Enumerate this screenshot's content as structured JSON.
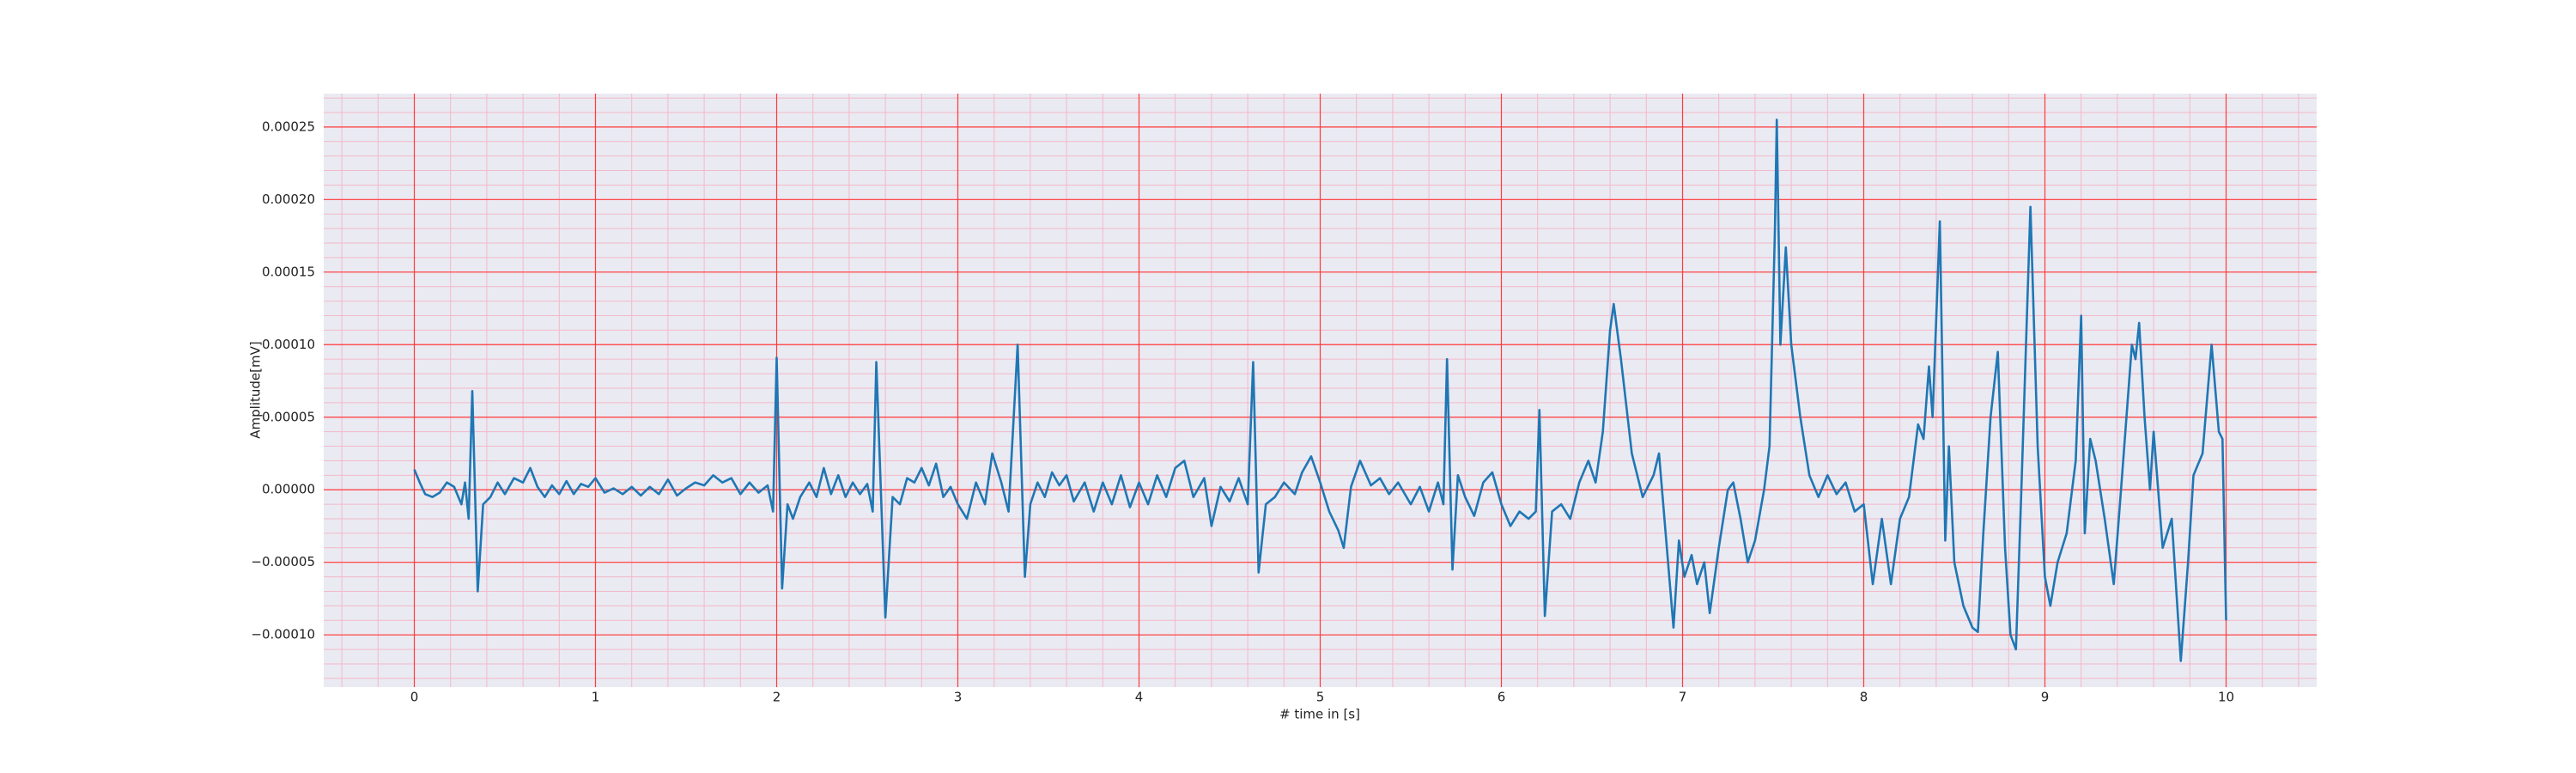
{
  "chart_data": {
    "type": "line",
    "xlabel": "# time in [s]",
    "ylabel": "Amplitude[mV]",
    "xlim": [
      -0.5,
      10.5
    ],
    "ylim": [
      -0.000136,
      0.000273
    ],
    "xticks": [
      0,
      1,
      2,
      3,
      4,
      5,
      6,
      7,
      8,
      9,
      10
    ],
    "yticks": [
      {
        "value": -0.0001,
        "label": "−0.00010"
      },
      {
        "value": -5e-05,
        "label": "−0.00005"
      },
      {
        "value": 0,
        "label": "0.00000"
      },
      {
        "value": 5e-05,
        "label": "0.00005"
      },
      {
        "value": 0.0001,
        "label": "0.00010"
      },
      {
        "value": 0.00015,
        "label": "0.00015"
      },
      {
        "value": 0.0002,
        "label": "0.00020"
      },
      {
        "value": 0.00025,
        "label": "0.00025"
      }
    ],
    "grid": true,
    "minor_grid": true,
    "x_minor_divisions": 5,
    "y_minor_divisions": 5,
    "background": "#eaeaf2",
    "grid_color": "#ff3b3b",
    "minor_grid_color": "#f4b8c8",
    "series": [
      {
        "color": "#1f77b4",
        "x": [
          0,
          0.03,
          0.06,
          0.1,
          0.14,
          0.18,
          0.22,
          0.26,
          0.28,
          0.3,
          0.32,
          0.35,
          0.38,
          0.42,
          0.46,
          0.5,
          0.55,
          0.6,
          0.64,
          0.68,
          0.72,
          0.76,
          0.8,
          0.84,
          0.88,
          0.92,
          0.96,
          1.0,
          1.05,
          1.1,
          1.15,
          1.2,
          1.25,
          1.3,
          1.35,
          1.4,
          1.45,
          1.5,
          1.55,
          1.6,
          1.65,
          1.7,
          1.75,
          1.8,
          1.85,
          1.9,
          1.95,
          1.98,
          2.0,
          2.03,
          2.06,
          2.09,
          2.13,
          2.18,
          2.22,
          2.26,
          2.3,
          2.34,
          2.38,
          2.42,
          2.46,
          2.5,
          2.53,
          2.55,
          2.6,
          2.64,
          2.68,
          2.72,
          2.76,
          2.8,
          2.84,
          2.88,
          2.92,
          2.96,
          3.0,
          3.05,
          3.1,
          3.15,
          3.19,
          3.24,
          3.28,
          3.33,
          3.37,
          3.4,
          3.44,
          3.48,
          3.52,
          3.56,
          3.6,
          3.64,
          3.7,
          3.75,
          3.8,
          3.85,
          3.9,
          3.95,
          4.0,
          4.05,
          4.1,
          4.15,
          4.2,
          4.25,
          4.3,
          4.36,
          4.4,
          4.45,
          4.5,
          4.55,
          4.6,
          4.63,
          4.66,
          4.7,
          4.75,
          4.8,
          4.86,
          4.9,
          4.95,
          5.0,
          5.05,
          5.1,
          5.13,
          5.17,
          5.22,
          5.28,
          5.33,
          5.38,
          5.43,
          5.5,
          5.55,
          5.6,
          5.65,
          5.68,
          5.7,
          5.73,
          5.76,
          5.8,
          5.85,
          5.9,
          5.95,
          6.0,
          6.05,
          6.1,
          6.15,
          6.19,
          6.21,
          6.24,
          6.28,
          6.33,
          6.38,
          6.43,
          6.48,
          6.52,
          6.56,
          6.6,
          6.62,
          6.66,
          6.72,
          6.78,
          6.84,
          6.87,
          6.9,
          6.95,
          6.98,
          7.01,
          7.05,
          7.08,
          7.12,
          7.15,
          7.2,
          7.25,
          7.28,
          7.32,
          7.36,
          7.4,
          7.45,
          7.48,
          7.51,
          7.52,
          7.54,
          7.57,
          7.6,
          7.65,
          7.7,
          7.75,
          7.8,
          7.85,
          7.9,
          7.95,
          8.0,
          8.05,
          8.1,
          8.15,
          8.2,
          8.25,
          8.3,
          8.33,
          8.36,
          8.38,
          8.42,
          8.45,
          8.47,
          8.5,
          8.55,
          8.6,
          8.63,
          8.66,
          8.7,
          8.74,
          8.78,
          8.81,
          8.84,
          8.87,
          8.92,
          8.96,
          9.0,
          9.03,
          9.07,
          9.12,
          9.17,
          9.2,
          9.22,
          9.25,
          9.28,
          9.33,
          9.38,
          9.42,
          9.45,
          9.48,
          9.5,
          9.52,
          9.55,
          9.58,
          9.6,
          9.65,
          9.7,
          9.75,
          9.79,
          9.82,
          9.87,
          9.92,
          9.96,
          9.98,
          10.0
        ],
        "values": [
          1.4e-05,
          5e-06,
          -3e-06,
          -5e-06,
          -2e-06,
          5e-06,
          2e-06,
          -1e-05,
          5e-06,
          -2e-05,
          6.8e-05,
          -7e-05,
          -1e-05,
          -5e-06,
          5e-06,
          -3e-06,
          8e-06,
          5e-06,
          1.5e-05,
          2e-06,
          -5e-06,
          3e-06,
          -3e-06,
          6e-06,
          -3e-06,
          4e-06,
          2e-06,
          8e-06,
          -2e-06,
          1e-06,
          -3e-06,
          2e-06,
          -4e-06,
          2e-06,
          -3e-06,
          7e-06,
          -4e-06,
          1e-06,
          5e-06,
          3e-06,
          1e-05,
          5e-06,
          8e-06,
          -3e-06,
          5e-06,
          -2e-06,
          3e-06,
          -1.5e-05,
          9.1e-05,
          -6.8e-05,
          -1e-05,
          -2e-05,
          -5e-06,
          5e-06,
          -5e-06,
          1.5e-05,
          -3e-06,
          1e-05,
          -5e-06,
          5e-06,
          -3e-06,
          4e-06,
          -1.5e-05,
          8.8e-05,
          -8.8e-05,
          -5e-06,
          -1e-05,
          8e-06,
          5e-06,
          1.5e-05,
          3e-06,
          1.8e-05,
          -5e-06,
          2e-06,
          -1e-05,
          -2e-05,
          5e-06,
          -1e-05,
          2.5e-05,
          5e-06,
          -1.5e-05,
          0.0001,
          -6e-05,
          -1e-05,
          5e-06,
          -5e-06,
          1.2e-05,
          3e-06,
          1e-05,
          -8e-06,
          5e-06,
          -1.5e-05,
          5e-06,
          -1e-05,
          1e-05,
          -1.2e-05,
          5e-06,
          -1e-05,
          1e-05,
          -5e-06,
          1.5e-05,
          2e-05,
          -5e-06,
          8e-06,
          -2.5e-05,
          2e-06,
          -8e-06,
          8e-06,
          -1e-05,
          8.8e-05,
          -5.7e-05,
          -1e-05,
          -5e-06,
          5e-06,
          -3e-06,
          1.2e-05,
          2.3e-05,
          5e-06,
          -1.5e-05,
          -2.8e-05,
          -4e-05,
          2e-06,
          2e-05,
          3e-06,
          8e-06,
          -3e-06,
          5e-06,
          -1e-05,
          2e-06,
          -1.5e-05,
          5e-06,
          -1e-05,
          9e-05,
          -5.5e-05,
          1e-05,
          -5e-06,
          -1.8e-05,
          5e-06,
          1.2e-05,
          -1e-05,
          -2.5e-05,
          -1.5e-05,
          -2e-05,
          -1.5e-05,
          5.5e-05,
          -8.7e-05,
          -1.5e-05,
          -1e-05,
          -2e-05,
          5e-06,
          2e-05,
          5e-06,
          4e-05,
          0.00011,
          0.000128,
          9e-05,
          2.5e-05,
          -5e-06,
          1e-05,
          2.5e-05,
          -2e-05,
          -9.5e-05,
          -3.5e-05,
          -6e-05,
          -4.5e-05,
          -6.5e-05,
          -5e-05,
          -8.5e-05,
          -4e-05,
          0.0,
          5e-06,
          -2e-05,
          -5e-05,
          -3.5e-05,
          0.0,
          3e-05,
          0.00018,
          0.000255,
          0.0001,
          0.000167,
          0.0001,
          5e-05,
          1e-05,
          -5e-06,
          1e-05,
          -3e-06,
          5e-06,
          -1.5e-05,
          -1e-05,
          -6.5e-05,
          -2e-05,
          -6.5e-05,
          -2e-05,
          -5e-06,
          4.5e-05,
          3.5e-05,
          8.5e-05,
          5e-05,
          0.000185,
          -3.5e-05,
          3e-05,
          -5e-05,
          -8e-05,
          -9.5e-05,
          -9.8e-05,
          -3e-05,
          5e-05,
          9.5e-05,
          -4e-05,
          -0.0001,
          -0.00011,
          0.0,
          0.000195,
          3e-05,
          -6e-05,
          -8e-05,
          -5e-05,
          -3e-05,
          2e-05,
          0.00012,
          -3e-05,
          3.5e-05,
          2e-05,
          -2e-05,
          -6.5e-05,
          0.0,
          5e-05,
          0.0001,
          9e-05,
          0.000115,
          5e-05,
          0.0,
          4e-05,
          -4e-05,
          -2e-05,
          -0.000118,
          -5e-05,
          1e-05,
          2.5e-05,
          0.0001,
          4e-05,
          3.5e-05,
          -9e-05
        ]
      }
    ]
  }
}
